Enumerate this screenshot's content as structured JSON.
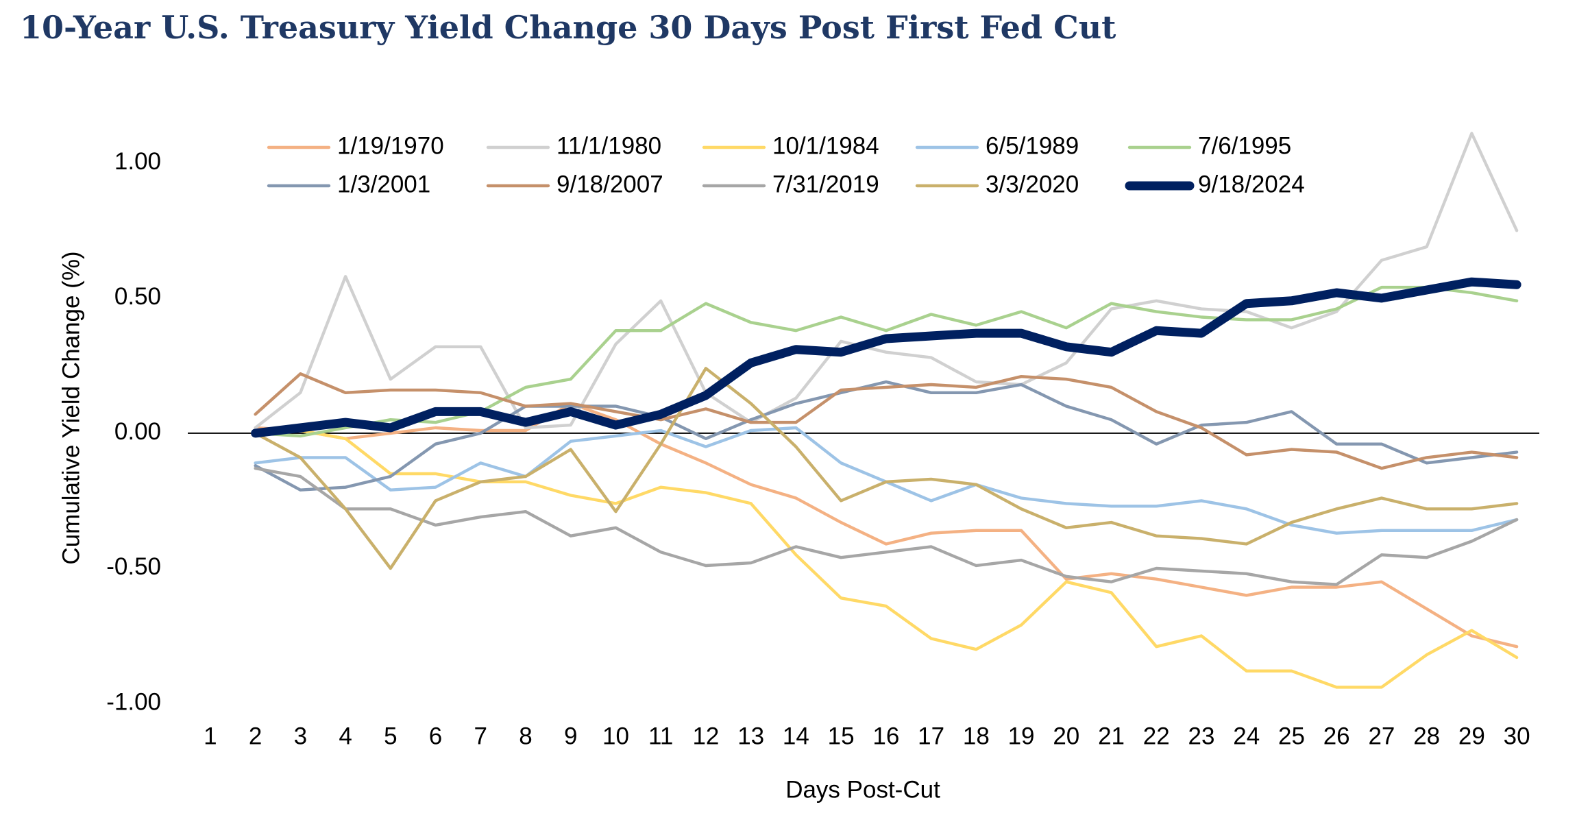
{
  "chart_data": {
    "type": "line",
    "title": "10-Year U.S. Treasury Yield Change 30 Days Post First Fed Cut",
    "x_label": "Days Post-Cut",
    "y_label": "Cumulative Yield Change (%)",
    "categories": [
      "1",
      "2",
      "3",
      "4",
      "5",
      "6",
      "7",
      "8",
      "9",
      "10",
      "11",
      "12",
      "13",
      "14",
      "15",
      "16",
      "17",
      "18",
      "19",
      "20",
      "21",
      "22",
      "23",
      "24",
      "25",
      "26",
      "27",
      "28",
      "29",
      "30"
    ],
    "ylim": [
      -1,
      1.2
    ],
    "yticks": [
      {
        "value": -1,
        "label": "-1.00"
      },
      {
        "value": -0.5,
        "label": "-0.50"
      },
      {
        "value": 0,
        "label": "0.00"
      },
      {
        "value": 0.5,
        "label": "0.50"
      },
      {
        "value": 1,
        "label": "1.00"
      }
    ],
    "grid": false,
    "legend": "top",
    "series": [
      {
        "name": "1/19/1970",
        "color": "#f4b183",
        "values": [
          null,
          0.02,
          0.01,
          -0.02,
          0.0,
          0.02,
          0.01,
          0.01,
          0.11,
          0.05,
          -0.04,
          -0.11,
          -0.19,
          -0.24,
          -0.33,
          -0.41,
          -0.37,
          -0.36,
          -0.36,
          -0.54,
          -0.52,
          -0.54,
          -0.57,
          -0.6,
          -0.57,
          -0.57,
          -0.55,
          -0.65,
          -0.75,
          -0.79
        ]
      },
      {
        "name": "11/1/1980",
        "color": "#d0d0d0",
        "values": [
          null,
          0.02,
          0.15,
          0.58,
          0.2,
          0.32,
          0.32,
          0.02,
          0.03,
          0.33,
          0.49,
          0.15,
          0.04,
          0.13,
          0.34,
          0.3,
          0.28,
          0.19,
          0.18,
          0.26,
          0.46,
          0.49,
          0.46,
          0.45,
          0.39,
          0.45,
          0.64,
          0.69,
          1.11,
          0.75
        ]
      },
      {
        "name": "10/1/1984",
        "color": "#ffd966",
        "values": [
          null,
          0.0,
          0.01,
          -0.02,
          -0.15,
          -0.15,
          -0.18,
          -0.18,
          -0.23,
          -0.26,
          -0.2,
          -0.22,
          -0.26,
          -0.45,
          -0.61,
          -0.64,
          -0.76,
          -0.8,
          -0.71,
          -0.55,
          -0.59,
          -0.79,
          -0.75,
          -0.88,
          -0.88,
          -0.94,
          -0.94,
          -0.82,
          -0.73,
          -0.83
        ]
      },
      {
        "name": "6/5/1989",
        "color": "#9dc3e6",
        "values": [
          null,
          -0.11,
          -0.09,
          -0.09,
          -0.21,
          -0.2,
          -0.11,
          -0.16,
          -0.03,
          -0.01,
          0.01,
          -0.05,
          0.01,
          0.02,
          -0.11,
          -0.18,
          -0.25,
          -0.19,
          -0.24,
          -0.26,
          -0.27,
          -0.27,
          -0.25,
          -0.28,
          -0.34,
          -0.37,
          -0.36,
          -0.36,
          -0.36,
          -0.32
        ]
      },
      {
        "name": "7/6/1995",
        "color": "#a9d18e",
        "values": [
          null,
          0.0,
          -0.01,
          0.02,
          0.05,
          0.04,
          0.08,
          0.17,
          0.2,
          0.38,
          0.38,
          0.48,
          0.41,
          0.38,
          0.43,
          0.38,
          0.44,
          0.4,
          0.45,
          0.39,
          0.48,
          0.45,
          0.43,
          0.42,
          0.42,
          0.46,
          0.54,
          0.54,
          0.52,
          0.49
        ]
      },
      {
        "name": "1/3/2001",
        "color": "#8497b0",
        "values": [
          null,
          -0.12,
          -0.21,
          -0.2,
          -0.16,
          -0.04,
          0.0,
          0.1,
          0.1,
          0.1,
          0.06,
          -0.02,
          0.05,
          0.11,
          0.15,
          0.19,
          0.15,
          0.15,
          0.18,
          0.1,
          0.05,
          -0.04,
          0.03,
          0.04,
          0.08,
          -0.04,
          -0.04,
          -0.11,
          -0.09,
          -0.07
        ]
      },
      {
        "name": "9/18/2007",
        "color": "#c5906a",
        "values": [
          null,
          0.07,
          0.22,
          0.15,
          0.16,
          0.16,
          0.15,
          0.1,
          0.11,
          0.08,
          0.05,
          0.09,
          0.04,
          0.04,
          0.16,
          0.17,
          0.18,
          0.17,
          0.21,
          0.2,
          0.17,
          0.08,
          0.02,
          -0.08,
          -0.06,
          -0.07,
          -0.13,
          -0.09,
          -0.07,
          -0.09
        ]
      },
      {
        "name": "7/31/2019",
        "color": "#a6a6a6",
        "values": [
          null,
          -0.13,
          -0.16,
          -0.28,
          -0.28,
          -0.34,
          -0.31,
          -0.29,
          -0.38,
          -0.35,
          -0.44,
          -0.49,
          -0.48,
          -0.42,
          -0.46,
          -0.44,
          -0.42,
          -0.49,
          -0.47,
          -0.53,
          -0.55,
          -0.5,
          -0.51,
          -0.52,
          -0.55,
          -0.56,
          -0.45,
          -0.46,
          -0.4,
          -0.32
        ]
      },
      {
        "name": "3/3/2020",
        "color": "#c9b06b",
        "values": [
          null,
          0.0,
          -0.09,
          -0.28,
          -0.5,
          -0.25,
          -0.18,
          -0.16,
          -0.06,
          -0.29,
          -0.04,
          0.24,
          0.11,
          -0.05,
          -0.25,
          -0.18,
          -0.17,
          -0.19,
          -0.28,
          -0.35,
          -0.33,
          -0.38,
          -0.39,
          -0.41,
          -0.33,
          -0.28,
          -0.24,
          -0.28,
          -0.28,
          -0.26
        ]
      },
      {
        "name": "9/18/2024",
        "color": "#002060",
        "values": [
          null,
          0.0,
          0.02,
          0.04,
          0.02,
          0.08,
          0.08,
          0.04,
          0.08,
          0.03,
          0.07,
          0.14,
          0.26,
          0.31,
          0.3,
          0.35,
          0.36,
          0.37,
          0.37,
          0.32,
          0.3,
          0.38,
          0.37,
          0.48,
          0.49,
          0.52,
          0.5,
          0.53,
          0.56,
          0.55
        ]
      }
    ]
  }
}
